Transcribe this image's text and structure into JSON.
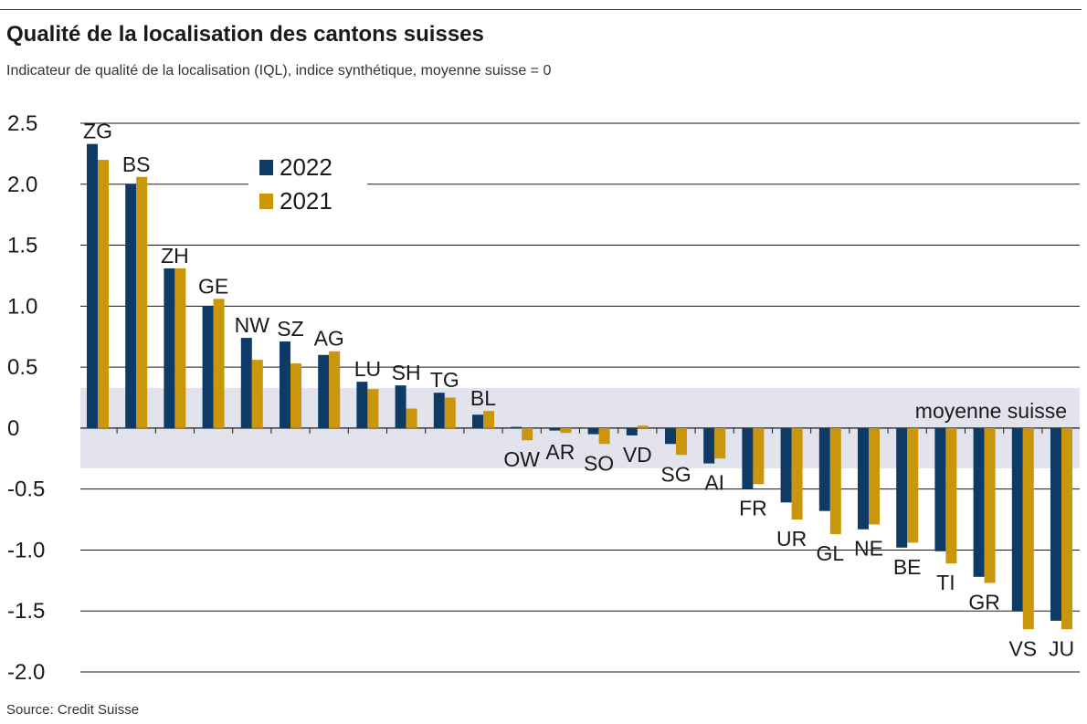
{
  "header": {
    "title": "Qualité de la localisation des cantons suisses",
    "subtitle": "Indicateur de qualité de la localisation (IQL), indice synthétique, moyenne suisse = 0"
  },
  "footer": {
    "source": "Source: Credit Suisse"
  },
  "chart_data": {
    "type": "bar",
    "title": "Qualité de la localisation des cantons suisses",
    "subtitle": "Indicateur de qualité de la localisation (IQL), indice synthétique, moyenne suisse = 0",
    "xlabel": "",
    "ylabel": "",
    "ylim": [
      -2.0,
      2.5
    ],
    "yticks": [
      2.5,
      2.0,
      1.5,
      1.0,
      0.5,
      0,
      -0.5,
      -1.0,
      -1.5,
      -2.0
    ],
    "ytick_labels": [
      "2.5",
      "2.0",
      "1.5",
      "1.0",
      "0.5",
      "0",
      "-0.5",
      "-1.0",
      "-1.5",
      "-2.0"
    ],
    "grid": true,
    "legend": "top-left",
    "categories": [
      "ZG",
      "BS",
      "ZH",
      "GE",
      "NW",
      "SZ",
      "AG",
      "LU",
      "SH",
      "TG",
      "BL",
      "OW",
      "AR",
      "SO",
      "VD",
      "SG",
      "AI",
      "FR",
      "UR",
      "GL",
      "NE",
      "BE",
      "TI",
      "GR",
      "VS",
      "JU"
    ],
    "series": [
      {
        "name": "2022",
        "color": "#0d3b66",
        "values": [
          2.33,
          2.0,
          1.31,
          1.0,
          0.74,
          0.71,
          0.6,
          0.38,
          0.35,
          0.29,
          0.11,
          0.01,
          -0.02,
          -0.05,
          -0.06,
          -0.13,
          -0.29,
          -0.5,
          -0.61,
          -0.68,
          -0.83,
          -0.98,
          -1.01,
          -1.22,
          -1.5,
          -1.58
        ]
      },
      {
        "name": "2021",
        "color": "#c9960c",
        "values": [
          2.2,
          2.06,
          1.31,
          1.06,
          0.56,
          0.53,
          0.63,
          0.32,
          0.16,
          0.25,
          0.14,
          -0.1,
          -0.04,
          -0.13,
          0.02,
          -0.22,
          -0.25,
          -0.46,
          -0.75,
          -0.87,
          -0.79,
          -0.94,
          -1.11,
          -1.27,
          -1.65,
          -1.65
        ]
      }
    ],
    "band": {
      "range": [
        -0.33,
        0.33
      ],
      "label": "moyenne suisse",
      "color": "#e3e3ee"
    }
  }
}
